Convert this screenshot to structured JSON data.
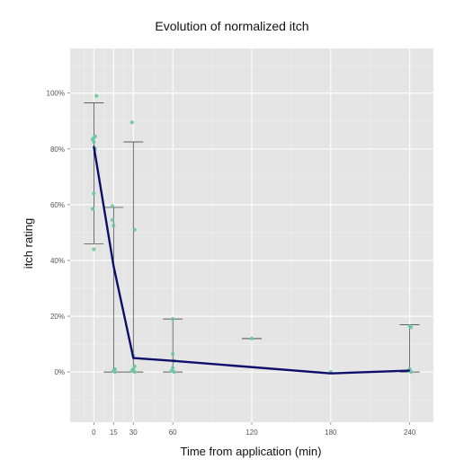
{
  "chart_data": {
    "type": "line",
    "title": "Evolution of normalized itch",
    "xlabel": "Time from application (min)",
    "ylabel": "itch rating",
    "x_ticks": [
      0,
      15,
      30,
      60,
      120,
      180,
      240
    ],
    "x_tick_labels": [
      "0",
      "15",
      "30",
      "60",
      "120",
      "180",
      "240"
    ],
    "y_ticks": [
      0,
      20,
      40,
      60,
      80,
      100
    ],
    "y_tick_labels": [
      "0%",
      "20%",
      "40%",
      "60%",
      "80%",
      "100%"
    ],
    "xlim": [
      -18,
      258
    ],
    "ylim": [
      -18,
      116
    ],
    "grid": true,
    "mean_line": {
      "color": "#0d0d6b",
      "points": [
        {
          "x": 0,
          "y": 81
        },
        {
          "x": 15,
          "y": 38
        },
        {
          "x": 30,
          "y": 5
        },
        {
          "x": 60,
          "y": 4
        },
        {
          "x": 180,
          "y": -0.5
        },
        {
          "x": 240,
          "y": 0.5
        }
      ]
    },
    "error_bars": [
      {
        "x": 0,
        "low": 46,
        "high": 96.5
      },
      {
        "x": 15,
        "low": 0,
        "high": 59
      },
      {
        "x": 30,
        "low": 0,
        "high": 82.5
      },
      {
        "x": 60,
        "low": 0,
        "high": 19
      },
      {
        "x": 120,
        "low": 12,
        "high": 12
      },
      {
        "x": 240,
        "low": 0,
        "high": 17
      }
    ],
    "points_color": "#6cc6a0",
    "points": [
      {
        "x": 0,
        "y": 84
      },
      {
        "x": -1,
        "y": 83.5
      },
      {
        "x": 1,
        "y": 84.5
      },
      {
        "x": 0,
        "y": 82.5
      },
      {
        "x": 2,
        "y": 99
      },
      {
        "x": 0,
        "y": 64
      },
      {
        "x": -1,
        "y": 58.5
      },
      {
        "x": 0,
        "y": 44
      },
      {
        "x": 1,
        "y": 80
      },
      {
        "x": 14,
        "y": 59.5
      },
      {
        "x": 14,
        "y": 54.5
      },
      {
        "x": 15,
        "y": 52.5
      },
      {
        "x": 16,
        "y": 1
      },
      {
        "x": 15,
        "y": 0.5
      },
      {
        "x": 16,
        "y": 0
      },
      {
        "x": 29,
        "y": 89.5
      },
      {
        "x": 31,
        "y": 51
      },
      {
        "x": 30,
        "y": 6
      },
      {
        "x": 31,
        "y": 2
      },
      {
        "x": 30,
        "y": 1
      },
      {
        "x": 29,
        "y": 0.5
      },
      {
        "x": 31,
        "y": 0
      },
      {
        "x": 60,
        "y": 19
      },
      {
        "x": 60,
        "y": 6.5
      },
      {
        "x": 61,
        "y": 4
      },
      {
        "x": 60,
        "y": 1.5
      },
      {
        "x": 59,
        "y": 0.5
      },
      {
        "x": 61,
        "y": 0
      },
      {
        "x": 120,
        "y": 12
      },
      {
        "x": 180,
        "y": 0
      },
      {
        "x": 240,
        "y": 16.5
      },
      {
        "x": 241,
        "y": 16
      },
      {
        "x": 240,
        "y": 1
      },
      {
        "x": 239,
        "y": 0.5
      },
      {
        "x": 241,
        "y": 0
      }
    ]
  }
}
